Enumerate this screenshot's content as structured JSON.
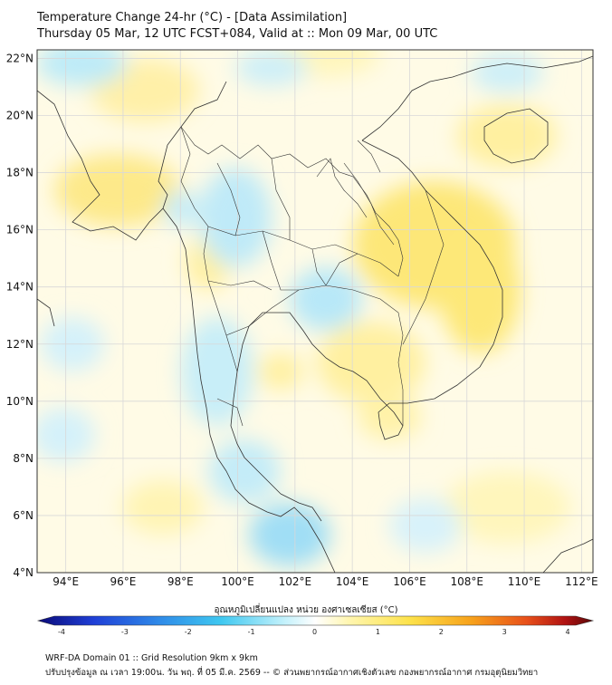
{
  "header": {
    "line1": "Temperature Change 24-hr (°C) - [Data Assimilation]",
    "line2": "Thursday 05 Mar, 12 UTC FCST+084, Valid at :: Mon 09 Mar, 00 UTC"
  },
  "map": {
    "lat_labels": [
      "22°N",
      "20°N",
      "18°N",
      "16°N",
      "14°N",
      "12°N",
      "10°N",
      "8°N",
      "6°N",
      "4°N"
    ],
    "lon_labels": [
      "94°E",
      "96°E",
      "98°E",
      "100°E",
      "102°E",
      "104°E",
      "106°E",
      "108°E",
      "110°E",
      "112°E"
    ],
    "lat_range": [
      4,
      22.3
    ],
    "lon_range": [
      93,
      112.4
    ],
    "gridlines": true
  },
  "colorbar": {
    "title": "อุณหภูมิเปลี่ยนแปลง หน่วย องศาเซลเซียส (°C)",
    "ticks": [
      "-4",
      "-3",
      "-2",
      "-1",
      "0",
      "1",
      "2",
      "3",
      "4"
    ],
    "range": [
      -4,
      4
    ],
    "colors": [
      "#0a0a78",
      "#1f3fd6",
      "#2f8be8",
      "#3fc8f0",
      "#bff0fb",
      "#ffffff",
      "#fff6b0",
      "#fde24a",
      "#f7a21b",
      "#e8501a",
      "#b01212",
      "#5a0808"
    ]
  },
  "footer": {
    "line1": "WRF-DA Domain 01 :: Grid Resolution 9km x 9km",
    "line2": "ปรับปรุงข้อมูล ณ เวลา 19:00น. วัน พฤ. ที่ 05 มี.ค. 2569 -- © ส่วนพยากรณ์อากาศเชิงตัวเลข กองพยากรณ์อากาศ กรมอุตุนิยมวิทยา"
  }
}
